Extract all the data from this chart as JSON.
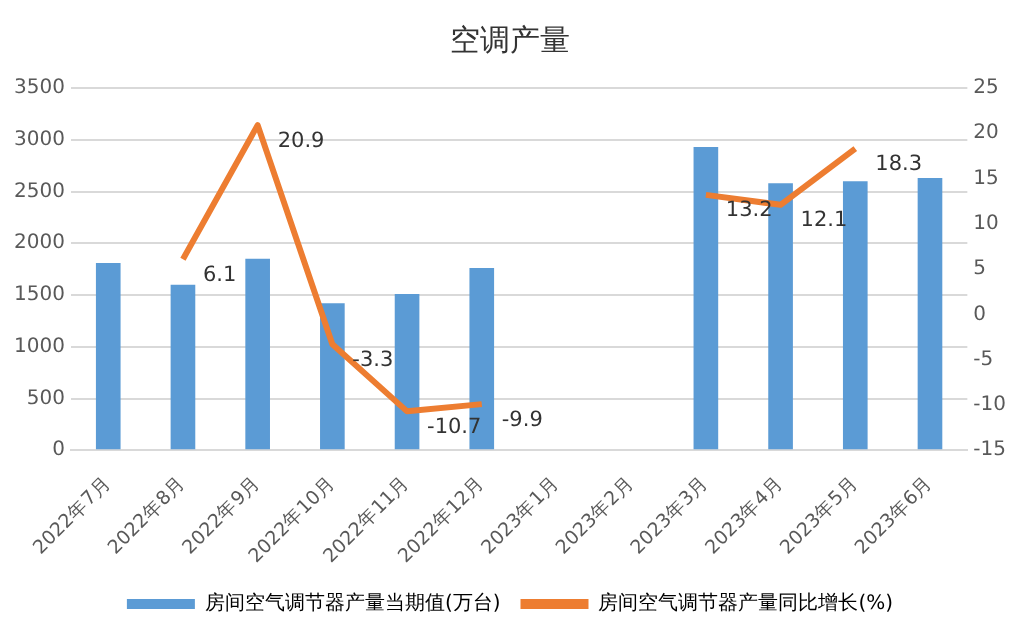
{
  "chart_data": {
    "type": "bar",
    "title": "空调产量",
    "categories": [
      "2022年7月",
      "2022年8月",
      "2022年9月",
      "2022年10月",
      "2022年11月",
      "2022年12月",
      "2023年1月",
      "2023年2月",
      "2023年3月",
      "2023年4月",
      "2023年5月",
      "2023年6月"
    ],
    "series": [
      {
        "name": "房间空气调节器产量当期值(万台)",
        "color": "#5b9bd5",
        "values": [
          1810,
          1600,
          1850,
          1420,
          1510,
          1760,
          null,
          null,
          2930,
          2580,
          2600,
          2630
        ]
      },
      {
        "name": "房间空气调节器产量同比增长(%)",
        "type": "line",
        "axis": "y2",
        "color": "#ed7d31",
        "marker": "none",
        "values": [
          null,
          6.1,
          20.9,
          -3.3,
          -10.7,
          -9.9,
          null,
          null,
          13.2,
          12.1,
          18.3,
          null
        ],
        "value_labels": [
          null,
          "6.1",
          "20.9",
          "-3.3",
          "-10.7",
          "-9.9",
          null,
          null,
          "13.2",
          "12.1",
          "18.3",
          null
        ]
      }
    ],
    "ylim": [
      0,
      3500
    ],
    "yticks": [
      0,
      500,
      1000,
      1500,
      2000,
      2500,
      3000,
      3500
    ],
    "y2lim": [
      -15,
      25
    ],
    "y2ticks": [
      -15,
      -10,
      -5,
      0,
      5,
      10,
      15,
      20,
      25
    ],
    "grid": "y",
    "legend": "bottom"
  }
}
